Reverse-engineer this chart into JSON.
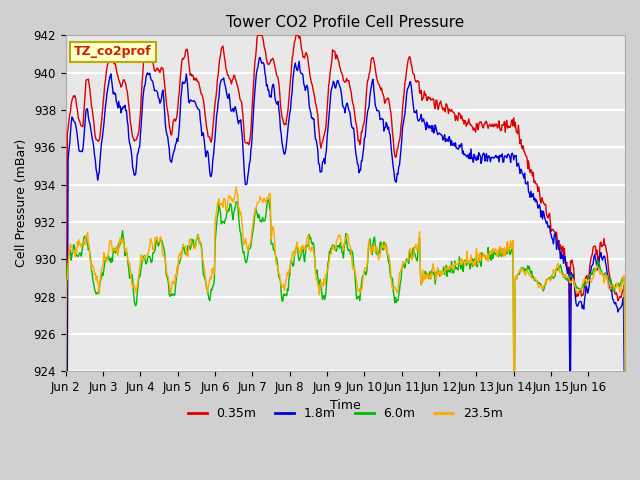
{
  "title": "Tower CO2 Profile Cell Pressure",
  "ylabel": "Cell Pressure (mBar)",
  "xlabel": "Time",
  "ylim": [
    924,
    942
  ],
  "annotation": "TZ_co2prof",
  "legend": [
    "0.35m",
    "1.8m",
    "6.0m",
    "23.5m"
  ],
  "colors": [
    "#dd0000",
    "#0000dd",
    "#00bb00",
    "#ffaa00"
  ],
  "fig_facecolor": "#d0d0d0",
  "ax_facecolor": "#e8e8e8",
  "title_fontsize": 11,
  "axis_fontsize": 9,
  "tick_fontsize": 8.5
}
